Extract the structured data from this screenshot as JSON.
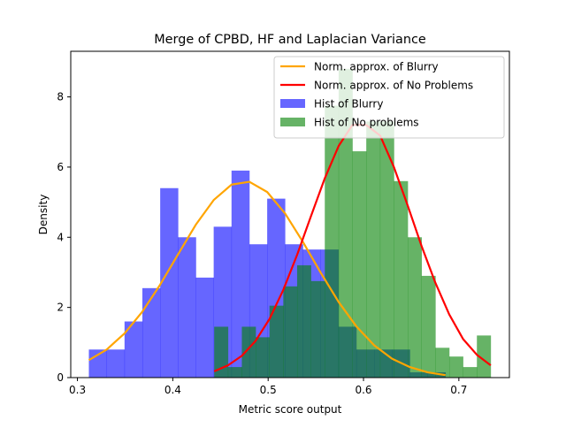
{
  "chart_data": {
    "type": "bar",
    "title": "Merge of CPBD, HF and Laplacian Variance",
    "xlabel": "Metric score output",
    "ylabel": "Density",
    "xlim": [
      0.293,
      0.753
    ],
    "ylim": [
      0,
      9.3
    ],
    "xticks": [
      0.3,
      0.4,
      0.5,
      0.6,
      0.7
    ],
    "xtick_labels": [
      "0.3",
      "0.4",
      "0.5",
      "0.6",
      "0.7"
    ],
    "yticks": [
      0,
      2,
      4,
      6,
      8
    ],
    "ytick_labels": [
      "0",
      "2",
      "4",
      "6",
      "8"
    ],
    "grid": false,
    "legend_position": "top-right",
    "histograms": [
      {
        "name": "Hist of Blurry",
        "color": "#0000ff",
        "opacity": 0.6,
        "bin_edges": [
          0.312,
          0.3307,
          0.3494,
          0.3681,
          0.3868,
          0.4055,
          0.4242,
          0.4429,
          0.4616,
          0.4803,
          0.499,
          0.5177,
          0.5364,
          0.5551,
          0.5738,
          0.5925,
          0.6112,
          0.6299,
          0.6486,
          0.6673,
          0.686
        ],
        "values": [
          0.8,
          0.8,
          1.6,
          2.55,
          5.4,
          4.0,
          2.85,
          4.3,
          5.9,
          3.8,
          5.1,
          3.8,
          3.65,
          3.65,
          1.45,
          0.8,
          0.8,
          0.8,
          0.15,
          0.15
        ]
      },
      {
        "name": "Hist of No problems",
        "color": "#008000",
        "opacity": 0.6,
        "bin_edges": [
          0.4434,
          0.4579,
          0.4724,
          0.4869,
          0.5014,
          0.5159,
          0.5304,
          0.5449,
          0.5594,
          0.5739,
          0.5884,
          0.6029,
          0.6174,
          0.6319,
          0.6464,
          0.6609,
          0.6754,
          0.6899,
          0.7044,
          0.7189,
          0.7334
        ],
        "values": [
          1.45,
          0.3,
          1.45,
          1.15,
          2.05,
          2.6,
          3.2,
          2.75,
          7.75,
          8.8,
          6.45,
          7.3,
          7.3,
          5.6,
          4.0,
          2.9,
          0.85,
          0.6,
          0.3,
          1.2
        ]
      }
    ],
    "curves": [
      {
        "name": "Norm. approx. of Blurry",
        "color": "#ffa500",
        "x": [
          0.312,
          0.3307,
          0.3494,
          0.3681,
          0.3868,
          0.4055,
          0.4242,
          0.4429,
          0.4616,
          0.4803,
          0.499,
          0.5177,
          0.5364,
          0.5551,
          0.5738,
          0.5925,
          0.6112,
          0.6299,
          0.6486,
          0.6673,
          0.686
        ],
        "y": [
          0.5,
          0.8,
          1.26,
          1.88,
          2.65,
          3.51,
          4.36,
          5.06,
          5.5,
          5.58,
          5.29,
          4.68,
          3.87,
          2.99,
          2.16,
          1.46,
          0.92,
          0.54,
          0.3,
          0.15,
          0.07
        ]
      },
      {
        "name": "Norm. approx. of No Problems",
        "color": "#ff0000",
        "x": [
          0.4434,
          0.4579,
          0.4724,
          0.4869,
          0.5014,
          0.5159,
          0.5304,
          0.5449,
          0.5594,
          0.5739,
          0.5884,
          0.6029,
          0.6174,
          0.6319,
          0.6464,
          0.6609,
          0.6754,
          0.6899,
          0.7044,
          0.7189,
          0.7334
        ],
        "y": [
          0.18,
          0.35,
          0.62,
          1.05,
          1.67,
          2.5,
          3.5,
          4.6,
          5.68,
          6.6,
          7.2,
          7.2,
          6.9,
          6.0,
          4.9,
          3.75,
          2.7,
          1.8,
          1.1,
          0.65,
          0.35
        ]
      }
    ],
    "legend": [
      {
        "label": "Norm. approx. of Blurry",
        "kind": "line",
        "color": "#ffa500"
      },
      {
        "label": "Norm. approx. of No Problems",
        "kind": "line",
        "color": "#ff0000"
      },
      {
        "label": "Hist of Blurry",
        "kind": "patch",
        "color": "#0000ff",
        "opacity": 0.6
      },
      {
        "label": "Hist of No problems",
        "kind": "patch",
        "color": "#008000",
        "opacity": 0.6
      }
    ]
  }
}
